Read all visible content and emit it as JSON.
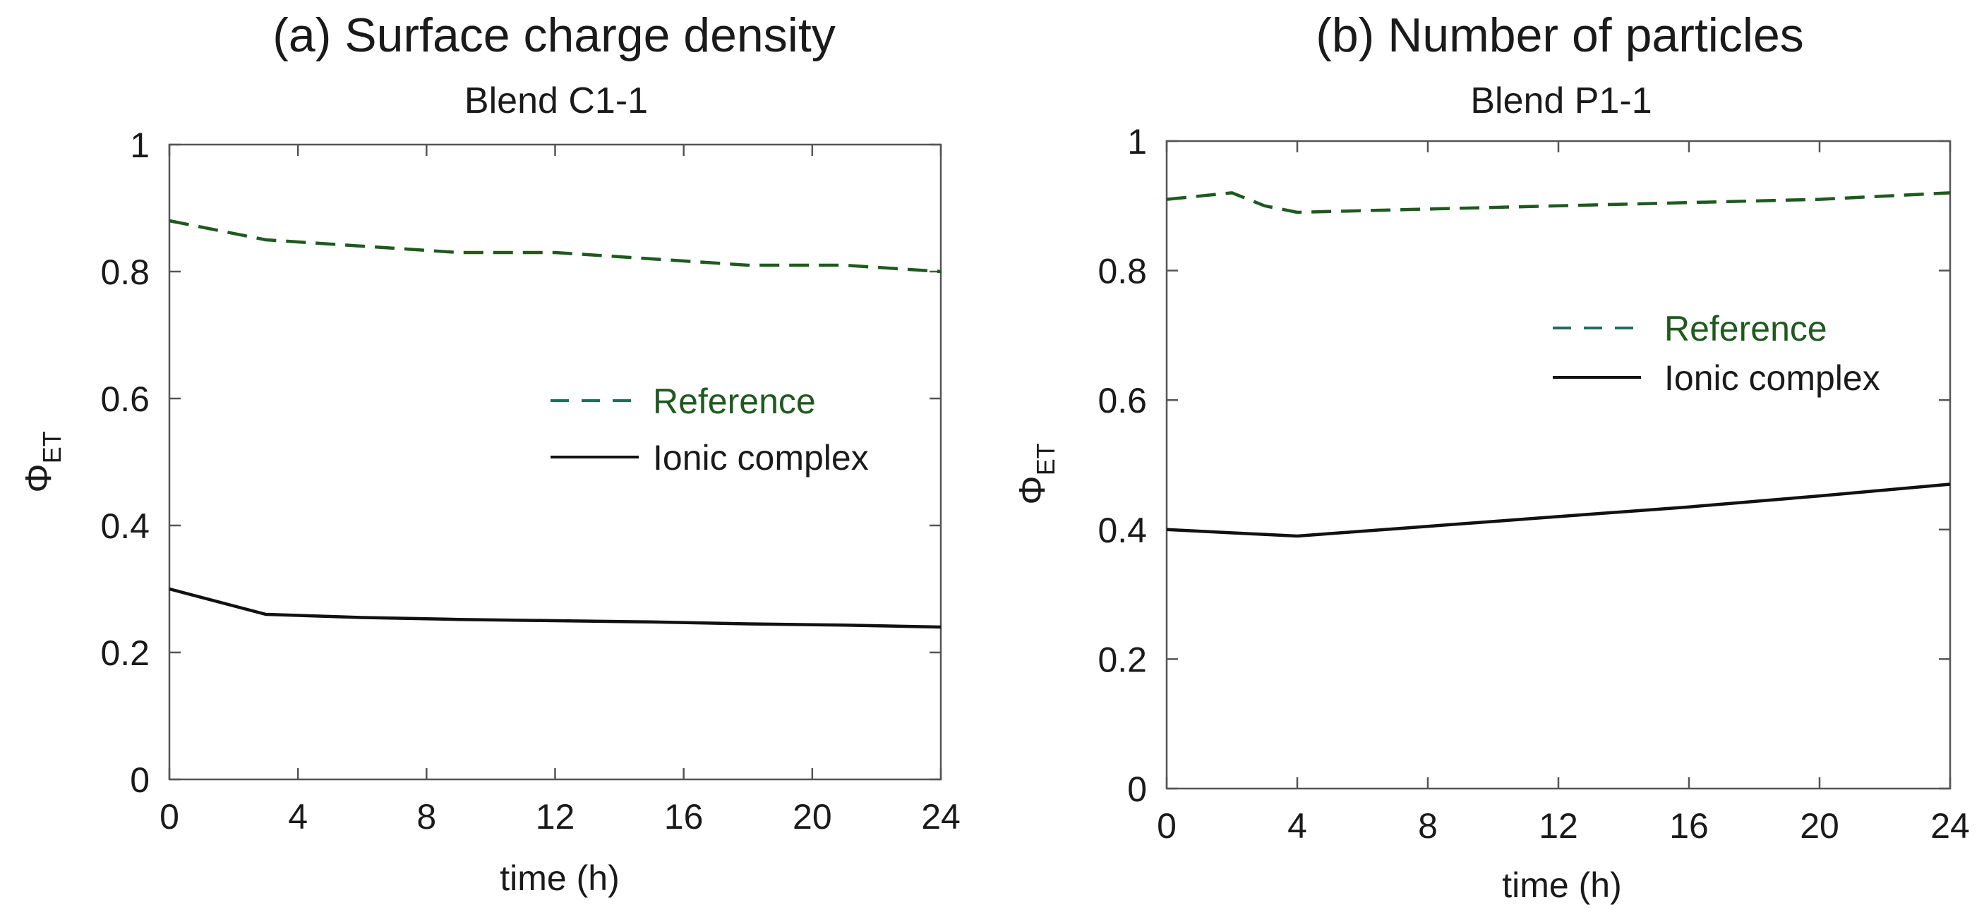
{
  "chart_data": [
    {
      "type": "line",
      "title": "(a) Surface charge density",
      "subtitle": "Blend C1-1",
      "xlabel": "time (h)",
      "ylabel": "Φ",
      "ylabel_sub": "ET",
      "xlim": [
        0,
        24
      ],
      "ylim": [
        0,
        1
      ],
      "xticks": [
        "0",
        "4",
        "8",
        "12",
        "16",
        "20",
        "24"
      ],
      "yticks": [
        "0",
        "0.2",
        "0.4",
        "0.6",
        "0.8",
        "1"
      ],
      "legend_position": "right-middle",
      "series": [
        {
          "name": "Reference",
          "style": "dashed",
          "color": "#1e5a1e",
          "legend_color": "#1e6e5a",
          "x": [
            0,
            3,
            6,
            9,
            12,
            15,
            18,
            21,
            24
          ],
          "y": [
            0.88,
            0.85,
            0.84,
            0.83,
            0.83,
            0.82,
            0.81,
            0.81,
            0.8
          ]
        },
        {
          "name": "Ionic complex",
          "style": "solid",
          "color": "#111111",
          "legend_color": "#111111",
          "x": [
            0,
            3,
            6,
            9,
            12,
            15,
            18,
            21,
            24
          ],
          "y": [
            0.3,
            0.26,
            0.255,
            0.252,
            0.25,
            0.248,
            0.245,
            0.243,
            0.24
          ]
        }
      ]
    },
    {
      "type": "line",
      "title": "(b) Number of particles",
      "subtitle": "Blend P1-1",
      "xlabel": "time (h)",
      "ylabel": "Φ",
      "ylabel_sub": "ET",
      "xlim": [
        0,
        24
      ],
      "ylim": [
        0,
        1
      ],
      "xticks": [
        "0",
        "4",
        "8",
        "12",
        "16",
        "20",
        "24"
      ],
      "yticks": [
        "0",
        "0.2",
        "0.4",
        "0.6",
        "0.8",
        "1"
      ],
      "legend_position": "right-upper",
      "series": [
        {
          "name": "Reference",
          "style": "dashed",
          "color": "#1e5a1e",
          "legend_color": "#1e6e5a",
          "x": [
            0,
            2,
            3,
            4,
            8,
            12,
            16,
            20,
            24
          ],
          "y": [
            0.91,
            0.92,
            0.9,
            0.89,
            0.895,
            0.9,
            0.905,
            0.91,
            0.92
          ]
        },
        {
          "name": "Ionic complex",
          "style": "solid",
          "color": "#111111",
          "legend_color": "#111111",
          "x": [
            0,
            4,
            8,
            12,
            16,
            20,
            24
          ],
          "y": [
            0.4,
            0.39,
            0.405,
            0.42,
            0.435,
            0.452,
            0.47
          ]
        }
      ]
    }
  ]
}
